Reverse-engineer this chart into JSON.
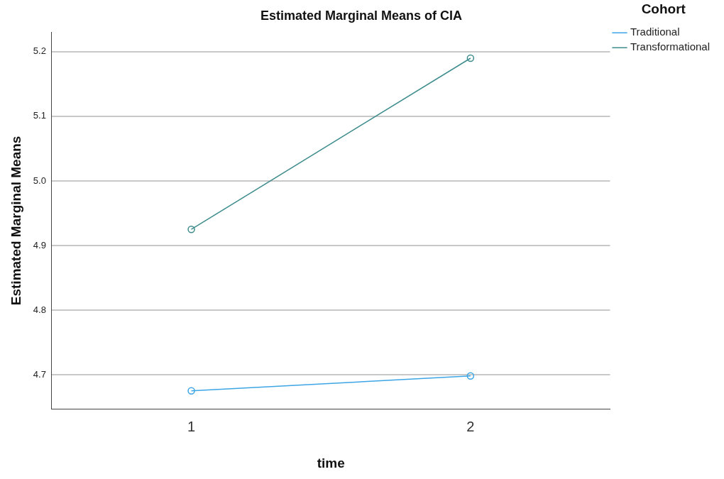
{
  "chart_data": {
    "type": "line",
    "title": "Estimated Marginal Means of CIA",
    "xlabel": "time",
    "ylabel": "Estimated Marginal Means",
    "legend_title": "Cohort",
    "legend": "top right",
    "categories": [
      "1",
      "2"
    ],
    "series": [
      {
        "name": "Traditional",
        "color": "#3ca5e6",
        "values": [
          4.675,
          4.698
        ]
      },
      {
        "name": "Transformational",
        "color": "#3f8c8c",
        "values": [
          4.925,
          5.19
        ]
      }
    ],
    "ylim": [
      4.647,
      5.23
    ],
    "yticks": [
      4.7,
      4.8,
      4.9,
      {
        "value": 5.0,
        "label": "5.0"
      },
      5.1,
      5.2
    ],
    "grid": "y",
    "marker": "circle",
    "line_style": "solid"
  }
}
